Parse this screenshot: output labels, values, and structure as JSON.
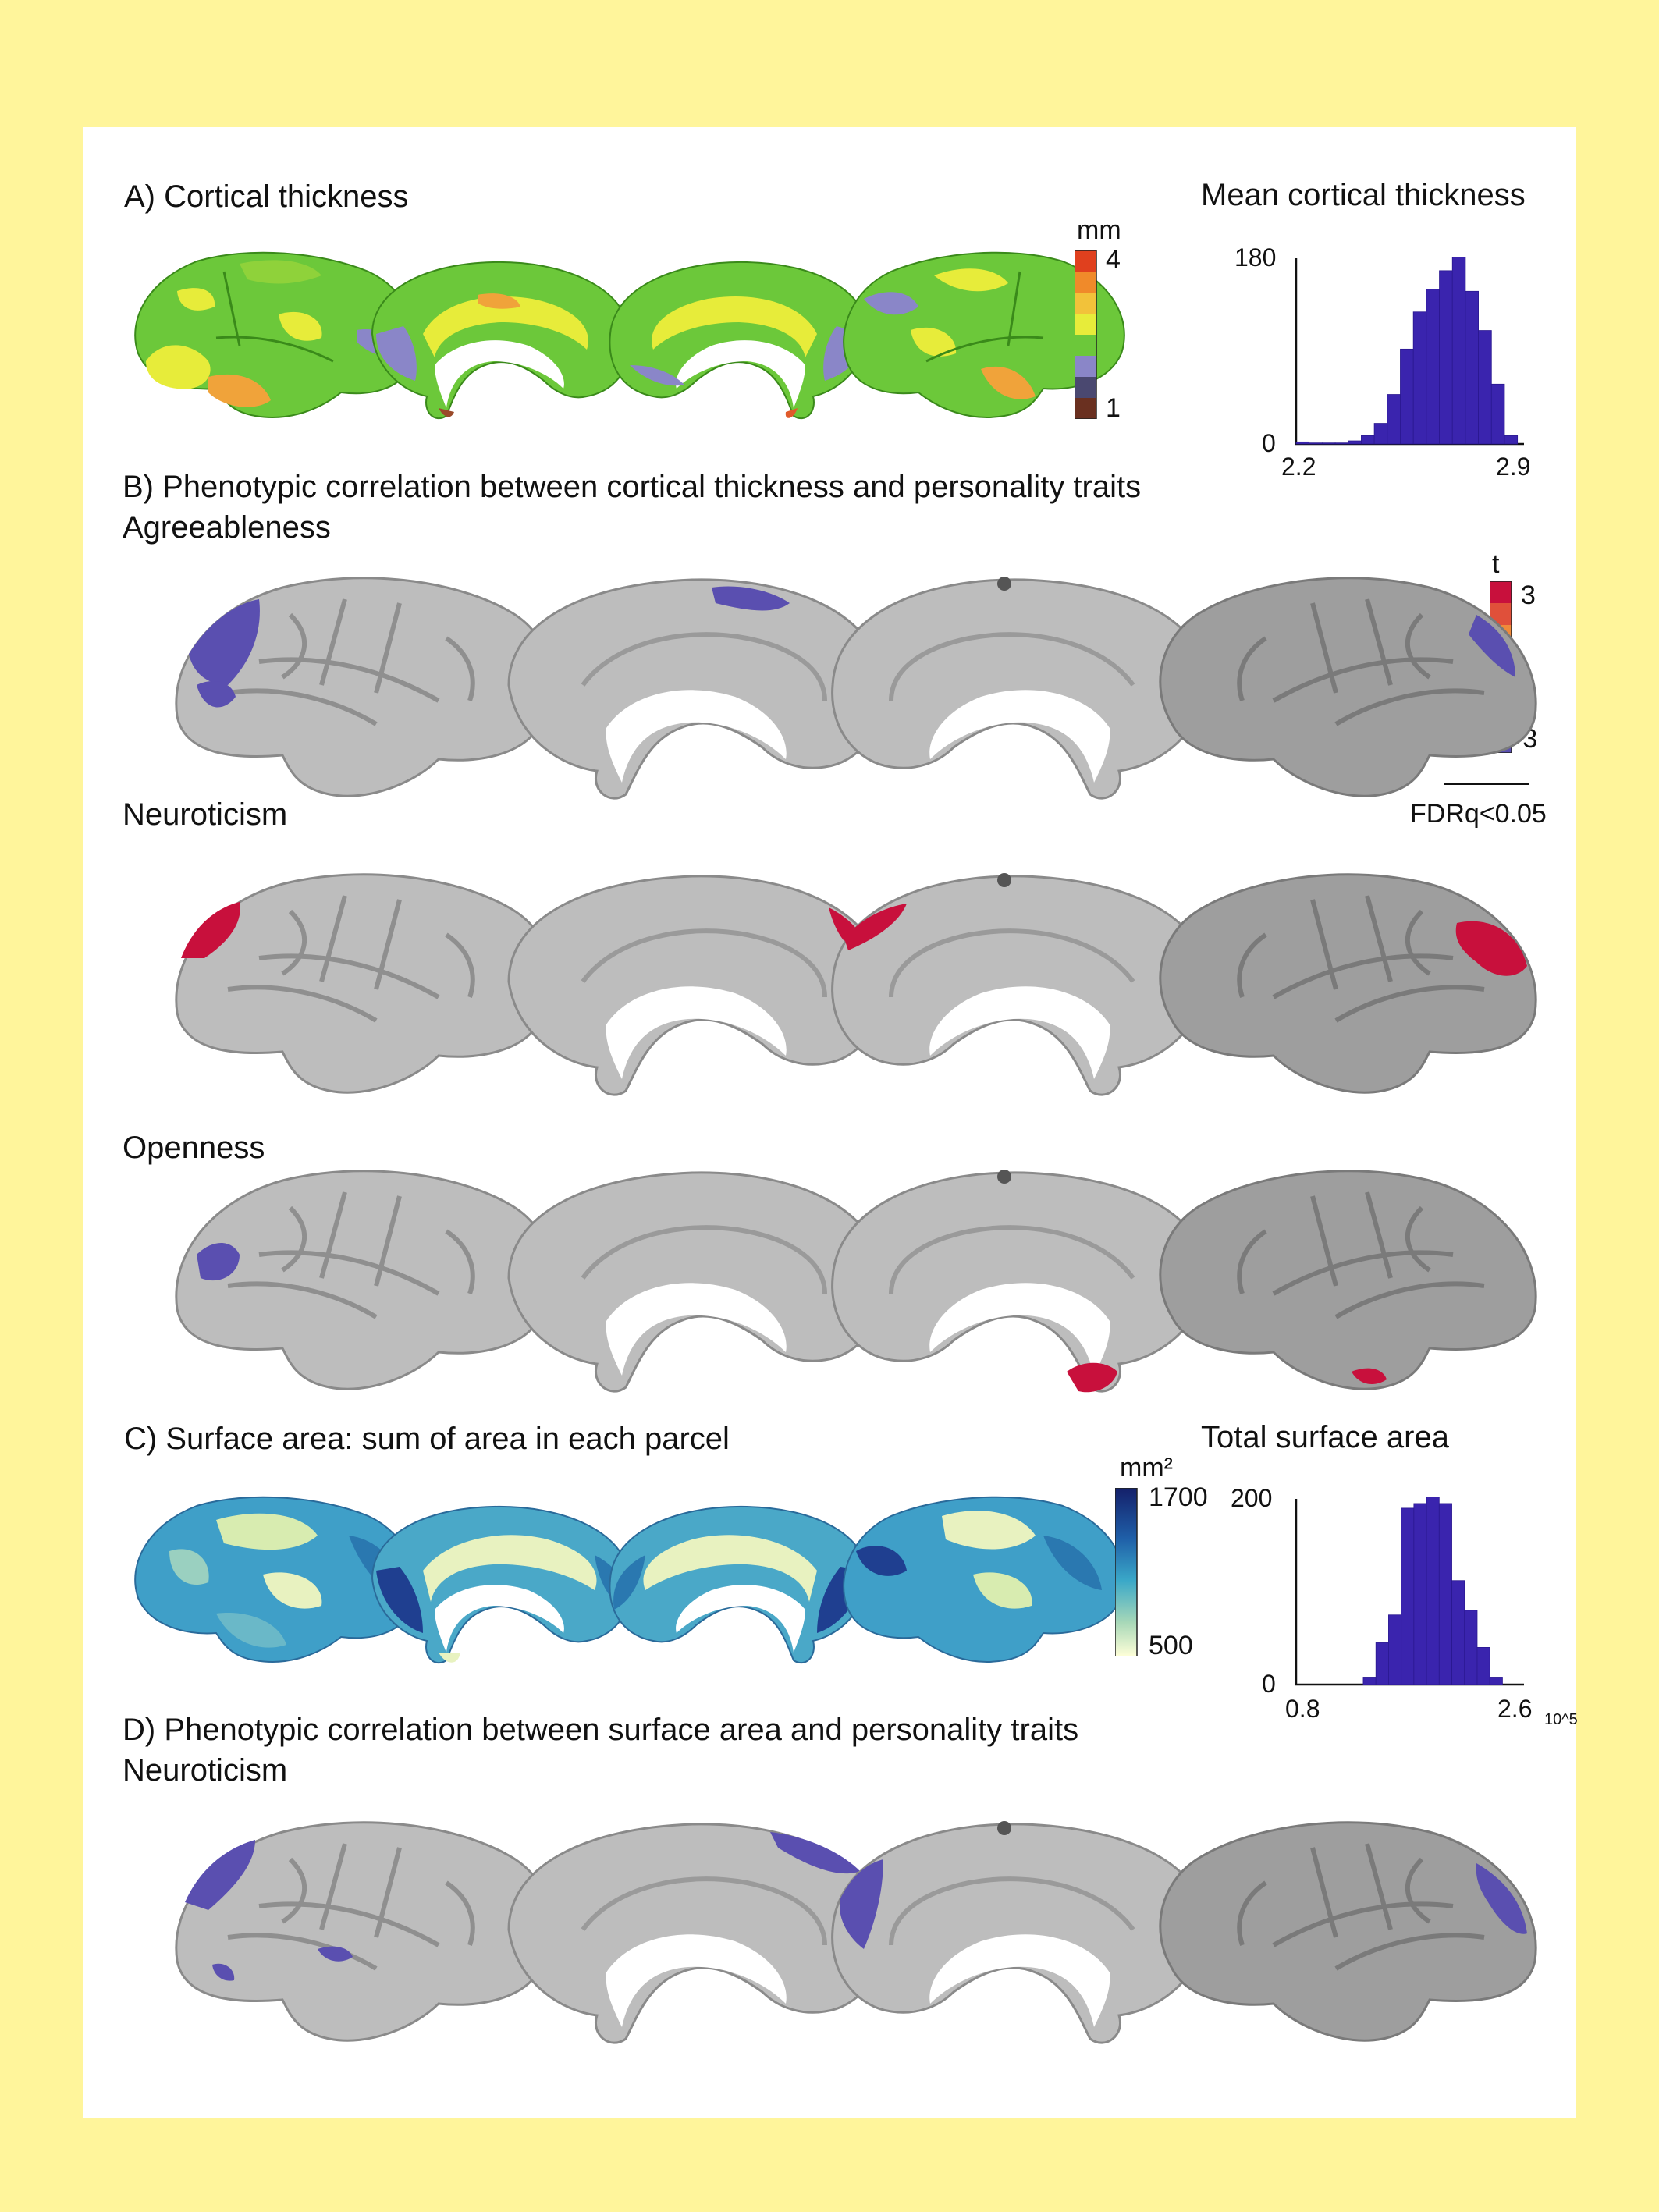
{
  "panels": {
    "a": {
      "title": "A) Cortical thickness",
      "colorbar": {
        "unit": "mm",
        "max": "4",
        "min": "1"
      }
    },
    "a_hist": {
      "title": "Mean cortical thickness",
      "ymax": "180",
      "ymin": "0",
      "xmin": "2.2",
      "xmax": "2.9",
      "x_scale": ""
    },
    "b": {
      "title": "B) Phenotypic correlation between cortical thickness and personality traits",
      "traits": [
        "Agreeableness",
        "Neuroticism",
        "Openness"
      ],
      "colorbar": {
        "unit": "t",
        "max": "3",
        "min": "-3",
        "threshold": "FDRq<0.05"
      }
    },
    "c": {
      "title": "C) Surface area: sum of area in each parcel",
      "colorbar": {
        "unit": "mm²",
        "max": "1700",
        "min": "500"
      }
    },
    "c_hist": {
      "title": "Total surface area",
      "ymax": "200",
      "ymin": "0",
      "xmin": "0.8",
      "xmax": "2.6",
      "x_scale": "10^5"
    },
    "d": {
      "title": "D) Phenotypic correlation between surface area and personality traits",
      "traits": [
        "Neuroticism"
      ]
    }
  },
  "colors": {
    "background": "#fff59b",
    "cortex": "#bdbdbd",
    "negative": "#5a4fb0",
    "positive": "#c8103c",
    "hist_bar": "#3a24ae"
  },
  "chart_data": [
    {
      "type": "bar",
      "title": "Mean cortical thickness",
      "xlabel": "",
      "ylabel": "",
      "xlim": [
        2.2,
        2.9
      ],
      "ylim": [
        0,
        180
      ],
      "bin_centers": [
        2.22,
        2.26,
        2.3,
        2.34,
        2.38,
        2.42,
        2.46,
        2.5,
        2.54,
        2.58,
        2.62,
        2.66,
        2.7,
        2.74,
        2.78,
        2.82,
        2.86
      ],
      "values": [
        2,
        1,
        1,
        1,
        3,
        8,
        20,
        48,
        92,
        128,
        150,
        168,
        182,
        148,
        110,
        58,
        8
      ]
    },
    {
      "type": "bar",
      "title": "Total surface area",
      "xlabel": "",
      "ylabel": "",
      "x_units": "10^5 mm²",
      "xlim": [
        0.8,
        2.6
      ],
      "ylim": [
        0,
        200
      ],
      "bin_centers": [
        1.38,
        1.48,
        1.58,
        1.68,
        1.78,
        1.88,
        1.98,
        2.08,
        2.18,
        2.28,
        2.38
      ],
      "values": [
        8,
        45,
        75,
        190,
        195,
        210,
        195,
        112,
        80,
        40,
        8
      ]
    }
  ]
}
